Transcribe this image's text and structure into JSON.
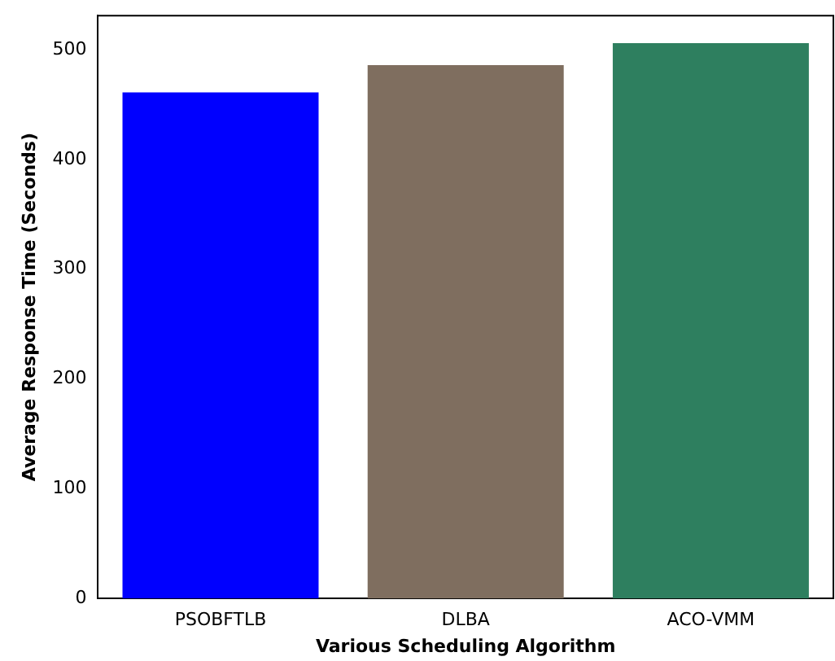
{
  "chart_data": {
    "type": "bar",
    "xlabel": "Various Scheduling Algorithm",
    "ylabel": "Average Response Time (Seconds)",
    "categories": [
      "PSOBFTLB",
      "DLBA",
      "ACO-VMM"
    ],
    "values": [
      461,
      486,
      506
    ],
    "colors": [
      "#0000ff",
      "#7f6e5f",
      "#2e7f5f"
    ],
    "ylim": [
      0,
      531
    ],
    "yticks": [
      0,
      100,
      200,
      300,
      400,
      500
    ],
    "grid": false,
    "legend": false
  }
}
